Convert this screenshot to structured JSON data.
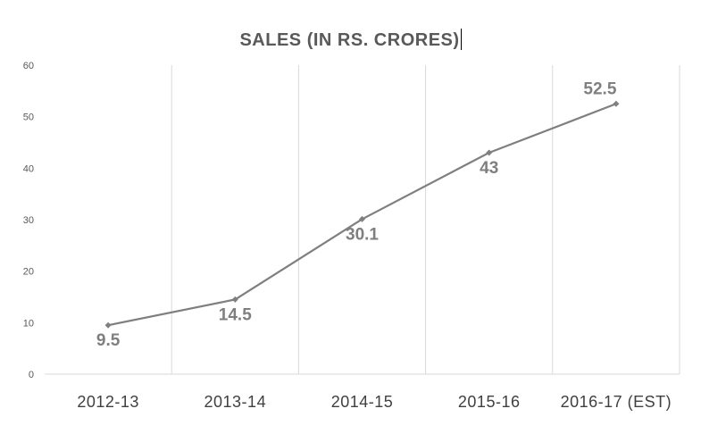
{
  "chart_data": {
    "type": "line",
    "title": "SALES (IN RS. CRORES)",
    "xlabel": "",
    "ylabel": "",
    "categories": [
      "2012-13",
      "2013-14",
      "2014-15",
      "2015-16",
      "2016-17 (EST)"
    ],
    "series": [
      {
        "values": [
          9.5,
          14.5,
          30.1,
          43,
          52.5
        ]
      }
    ],
    "data_labels": [
      "9.5",
      "14.5",
      "30.1",
      "43",
      "52.5"
    ],
    "yticks": [
      0,
      10,
      20,
      30,
      40,
      50,
      60
    ],
    "ylim": [
      0,
      60
    ],
    "grid": "vertical",
    "legend": "none",
    "colors": {
      "line": "#7f7f7f",
      "grid": "#d9d9d9",
      "label": "#7f7f7f"
    }
  }
}
